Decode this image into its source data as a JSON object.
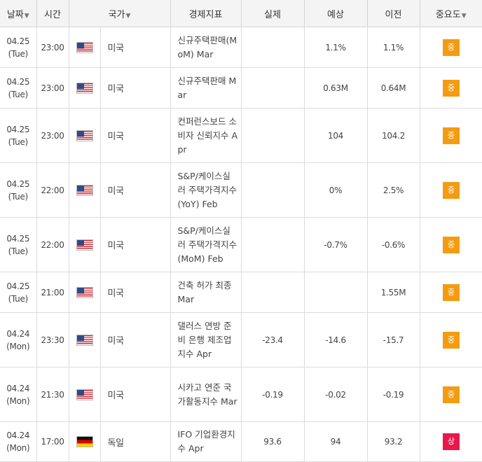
{
  "header": {
    "date": "날짜",
    "time": "시간",
    "country": "국가",
    "indicator": "경제지표",
    "actual": "실제",
    "forecast": "예상",
    "previous": "이전",
    "importance": "중요도",
    "sort_caret": "▼"
  },
  "colors": {
    "importance_mid": "#f39c12",
    "importance_high": "#e8184a"
  },
  "rows": [
    {
      "date": "04.25",
      "weekday": "(Tue)",
      "time": "23:00",
      "flag": "us-flag-icon",
      "country": "미국",
      "indicator": "신규주택판매(MoM) Mar",
      "actual": "",
      "forecast": "1.1%",
      "previous": "1.1%",
      "importance": "중",
      "importance_level": "mid"
    },
    {
      "date": "04.25",
      "weekday": "(Tue)",
      "time": "23:00",
      "flag": "us-flag-icon",
      "country": "미국",
      "indicator": "신규주택판매 Mar",
      "actual": "",
      "forecast": "0.63M",
      "previous": "0.64M",
      "importance": "중",
      "importance_level": "mid"
    },
    {
      "date": "04.25",
      "weekday": "(Tue)",
      "time": "23:00",
      "flag": "us-flag-icon",
      "country": "미국",
      "indicator": "컨퍼런스보드 소비자 신뢰지수 Apr",
      "actual": "",
      "forecast": "104",
      "previous": "104.2",
      "importance": "중",
      "importance_level": "mid"
    },
    {
      "date": "04.25",
      "weekday": "(Tue)",
      "time": "22:00",
      "flag": "us-flag-icon",
      "country": "미국",
      "indicator": "S&P/케이스실러 주택가격지수(YoY) Feb",
      "actual": "",
      "forecast": "0%",
      "previous": "2.5%",
      "importance": "중",
      "importance_level": "mid"
    },
    {
      "date": "04.25",
      "weekday": "(Tue)",
      "time": "22:00",
      "flag": "us-flag-icon",
      "country": "미국",
      "indicator": "S&P/케이스실러 주택가격지수(MoM) Feb",
      "actual": "",
      "forecast": "-0.7%",
      "previous": "-0.6%",
      "importance": "중",
      "importance_level": "mid"
    },
    {
      "date": "04.25",
      "weekday": "(Tue)",
      "time": "21:00",
      "flag": "us-flag-icon",
      "country": "미국",
      "indicator": "건축 허가 최종 Mar",
      "actual": "",
      "forecast": "",
      "previous": "1.55M",
      "importance": "중",
      "importance_level": "mid"
    },
    {
      "date": "04.24",
      "weekday": "(Mon)",
      "time": "23:30",
      "flag": "us-flag-icon",
      "country": "미국",
      "indicator": "댈러스 연방 준비 은행 제조업 지수 Apr",
      "actual": "-23.4",
      "forecast": "-14.6",
      "previous": "-15.7",
      "importance": "중",
      "importance_level": "mid"
    },
    {
      "date": "04.24",
      "weekday": "(Mon)",
      "time": "21:30",
      "flag": "us-flag-icon",
      "country": "미국",
      "indicator": "시카고 연준 국가활동지수 Mar",
      "actual": "-0.19",
      "forecast": "-0.02",
      "previous": "-0.19",
      "importance": "중",
      "importance_level": "mid"
    },
    {
      "date": "04.24",
      "weekday": "(Mon)",
      "time": "17:00",
      "flag": "de-flag-icon",
      "country": "독일",
      "indicator": "IFO 기업환경지수 Apr",
      "actual": "93.6",
      "forecast": "94",
      "previous": "93.2",
      "importance": "상",
      "importance_level": "high"
    }
  ]
}
